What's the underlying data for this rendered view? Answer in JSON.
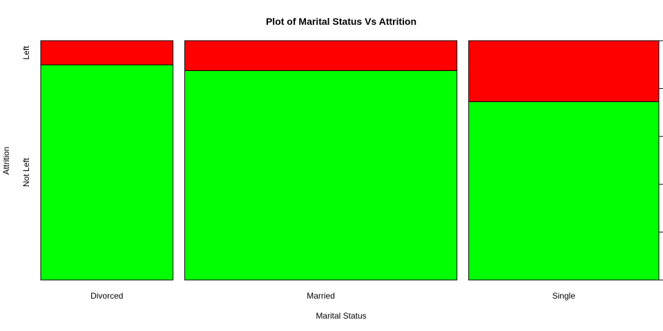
{
  "chart_data": {
    "type": "spineplot",
    "title": "Plot of Marital Status Vs Attrition",
    "xlabel": "Marital Status",
    "ylabel": "Attrition",
    "categories": [
      "Divorced",
      "Married",
      "Single"
    ],
    "category_widths": [
      0.2224,
      0.4578,
      0.3198
    ],
    "levels": [
      "Not Left",
      "Left"
    ],
    "level_colors": [
      "#00ff00",
      "#ff0000"
    ],
    "not_left_fraction": [
      0.899,
      0.875,
      0.745
    ],
    "right_axis": {
      "range": [
        0,
        1
      ],
      "ticks": [
        "0.0",
        "0.2",
        "0.4",
        "0.6",
        "0.8",
        "1.0"
      ]
    }
  }
}
